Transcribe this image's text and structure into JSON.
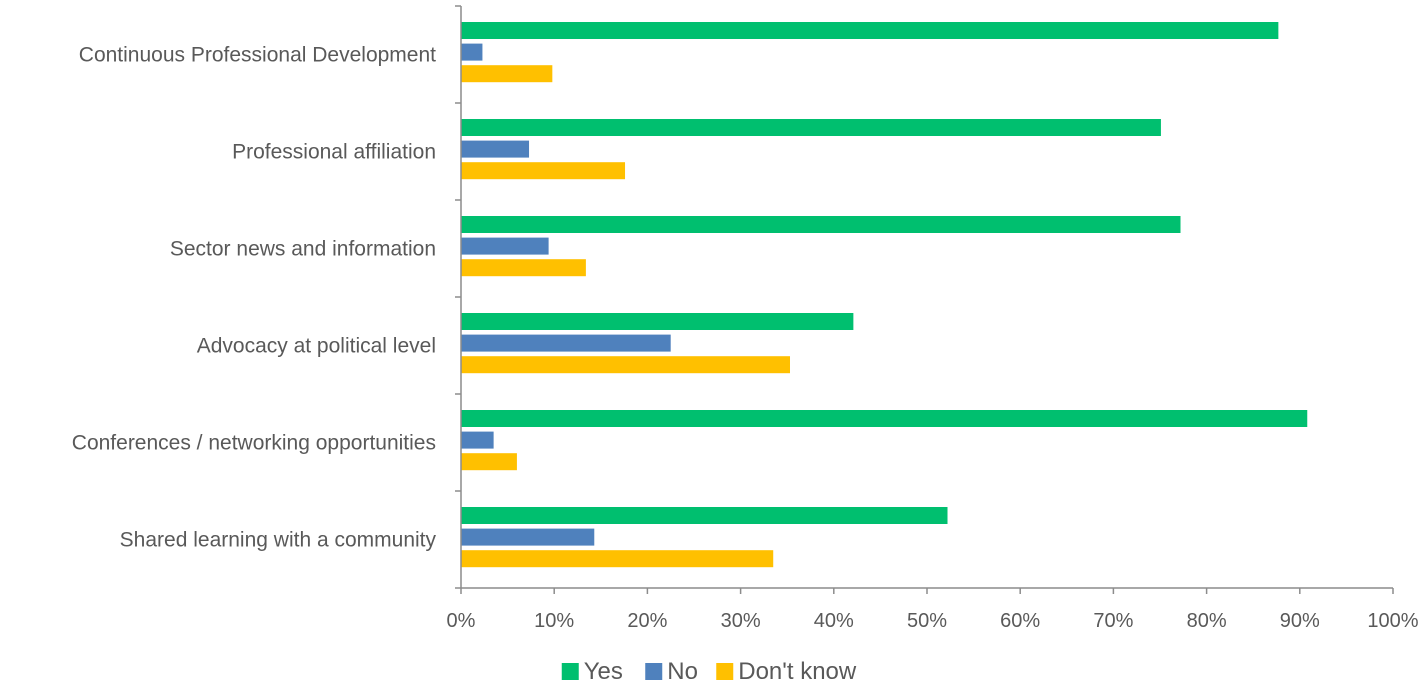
{
  "chart_data": {
    "type": "bar",
    "orientation": "horizontal",
    "categories": [
      "Continuous Professional Development",
      "Professional affiliation",
      "Sector news and information",
      "Advocacy at political level",
      "Conferences / networking opportunities",
      "Shared learning with a community"
    ],
    "series": [
      {
        "name": "Yes",
        "color": "#00bf6f",
        "values": [
          87.7,
          75.1,
          77.2,
          42.1,
          90.8,
          52.2
        ]
      },
      {
        "name": "No",
        "color": "#4f81bd",
        "values": [
          2.3,
          7.3,
          9.4,
          22.5,
          3.5,
          14.3
        ]
      },
      {
        "name": "Don't know",
        "color": "#ffc000",
        "values": [
          9.8,
          17.6,
          13.4,
          35.3,
          6.0,
          33.5
        ]
      }
    ],
    "xlim": [
      0,
      100
    ],
    "xticks": [
      "0%",
      "10%",
      "20%",
      "30%",
      "40%",
      "50%",
      "60%",
      "70%",
      "80%",
      "90%",
      "100%"
    ],
    "grid": false,
    "legend_position": "bottom"
  }
}
